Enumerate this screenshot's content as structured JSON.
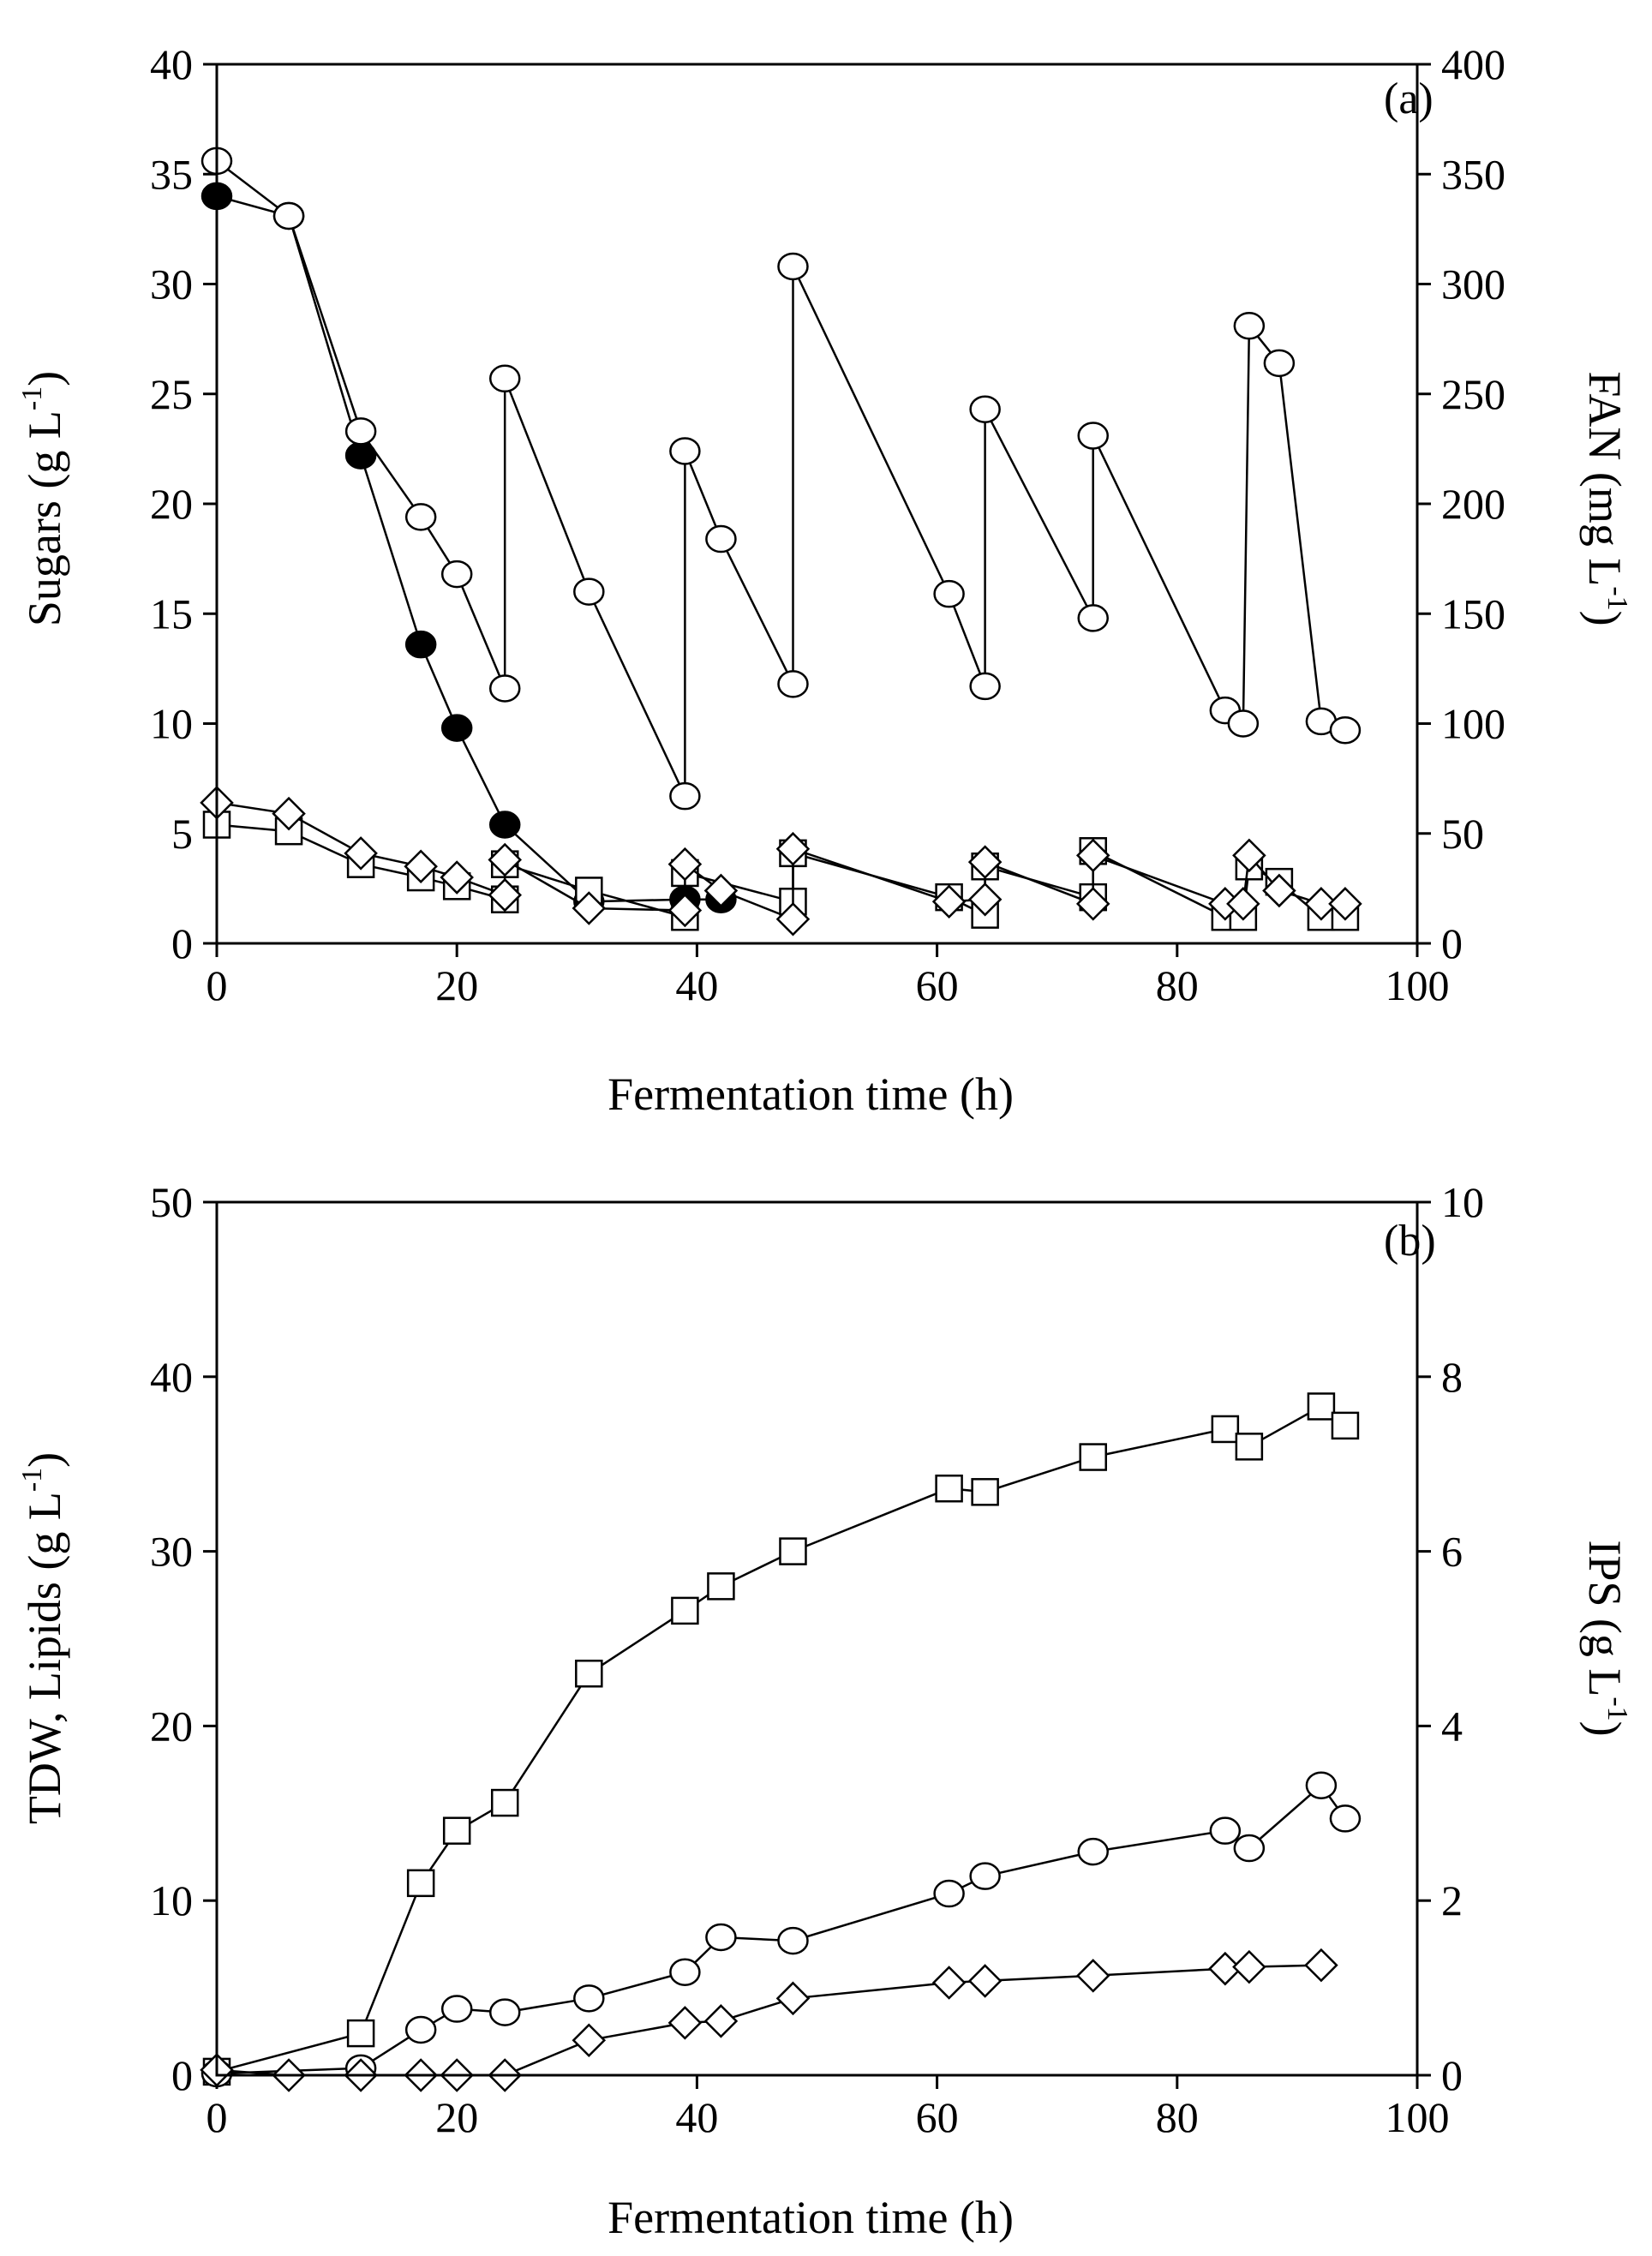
{
  "chart_data": [
    {
      "type": "line",
      "panel_label": "(a)",
      "xlabel": "Fermentation time (h)",
      "xlim": [
        0,
        100
      ],
      "xticks": [
        0,
        20,
        40,
        60,
        80,
        100
      ],
      "y_left": {
        "label": "Sugars (g L-1)",
        "label_main": "Sugars (g L",
        "label_sup": "-1",
        "label_end": ")",
        "lim": [
          0,
          40
        ],
        "ticks": [
          0,
          5,
          10,
          15,
          20,
          25,
          30,
          35,
          40
        ]
      },
      "y_right": {
        "label": "FAN (mg L-1)",
        "label_main": "FAN (mg L",
        "label_sup": "-1",
        "label_end": ")",
        "lim": [
          0,
          400
        ],
        "ticks": [
          0,
          50,
          100,
          150,
          200,
          250,
          300,
          350,
          400
        ]
      },
      "series": [
        {
          "name": "Sugar (filled circles)",
          "marker": "circle",
          "fill": "#000000",
          "axis": "left",
          "x": [
            0,
            6,
            12,
            17,
            20,
            24,
            31,
            39,
            42
          ],
          "y": [
            34.0,
            33.1,
            22.2,
            13.6,
            9.8,
            5.4,
            1.9,
            2.0,
            2.0
          ]
        },
        {
          "name": "FAN (open circles)",
          "marker": "circle",
          "fill": "#ffffff",
          "axis": "right",
          "x": [
            0,
            6,
            12,
            17,
            20,
            24,
            24,
            31,
            39,
            39,
            42,
            48,
            48,
            61,
            64,
            64,
            73,
            73,
            84,
            85.5,
            86,
            88.5,
            92,
            94
          ],
          "y": [
            356,
            331,
            233,
            194,
            168,
            116,
            257,
            160,
            67,
            224,
            184,
            118,
            308,
            159,
            117,
            243,
            148,
            231,
            106,
            100,
            281,
            264,
            101,
            97
          ]
        },
        {
          "name": "Sugar (open squares)",
          "marker": "square",
          "fill": "#ffffff",
          "axis": "left",
          "x": [
            0,
            6,
            12,
            17,
            20,
            24,
            24,
            31,
            39,
            39,
            48,
            48,
            61,
            64,
            64,
            73,
            73,
            84,
            85.5,
            86,
            88.5,
            92,
            94
          ],
          "y": [
            5.4,
            5.1,
            3.6,
            3.0,
            2.6,
            2.0,
            3.6,
            2.4,
            1.2,
            3.2,
            1.9,
            4.1,
            2.1,
            1.3,
            3.5,
            2.1,
            4.2,
            1.2,
            1.2,
            3.5,
            2.8,
            1.2,
            1.2
          ]
        },
        {
          "name": "Sugar (open diamonds)",
          "marker": "diamond",
          "fill": "#ffffff",
          "axis": "left",
          "x": [
            0,
            6,
            12,
            17,
            20,
            24,
            24,
            31,
            39,
            39,
            42,
            48,
            48,
            61,
            64,
            64,
            73,
            73,
            84,
            85.5,
            86,
            88.5,
            92,
            94
          ],
          "y": [
            6.4,
            5.9,
            4.1,
            3.5,
            3.0,
            2.2,
            3.8,
            1.6,
            1.5,
            3.6,
            2.4,
            1.1,
            4.3,
            1.9,
            2.0,
            3.7,
            1.8,
            4.0,
            1.8,
            1.8,
            4.0,
            2.4,
            1.8,
            1.8
          ]
        }
      ]
    },
    {
      "type": "line",
      "panel_label": "(b)",
      "xlabel": "Fermentation time (h)",
      "xlim": [
        0,
        100
      ],
      "xticks": [
        0,
        20,
        40,
        60,
        80,
        100
      ],
      "y_left": {
        "label": "TDW, Lipids (g L-1)",
        "label_main": "TDW, Lipids (g L",
        "label_sup": "-1",
        "label_end": ")",
        "lim": [
          0,
          50
        ],
        "ticks": [
          0,
          10,
          20,
          30,
          40,
          50
        ]
      },
      "y_right": {
        "label": "IPS (g L-1)",
        "label_main": "IPS (g L",
        "label_sup": "-1",
        "label_end": ")",
        "lim": [
          0,
          10
        ],
        "ticks": [
          0,
          2,
          4,
          6,
          8,
          10
        ]
      },
      "series": [
        {
          "name": "TDW (open squares)",
          "marker": "square",
          "fill": "#ffffff",
          "axis": "left",
          "x": [
            0,
            12,
            17,
            20,
            24,
            31,
            39,
            42,
            48,
            61,
            64,
            73,
            84,
            86,
            92,
            94
          ],
          "y": [
            0.2,
            2.4,
            11.0,
            14.0,
            15.6,
            23.0,
            26.6,
            28.0,
            30.0,
            33.6,
            33.4,
            35.4,
            37.0,
            36.0,
            38.3,
            37.2
          ]
        },
        {
          "name": "Lipids (open circles)",
          "marker": "circle",
          "fill": "#ffffff",
          "axis": "left",
          "x": [
            0,
            12,
            17,
            20,
            24,
            31,
            39,
            42,
            48,
            61,
            64,
            73,
            84,
            86,
            92,
            94
          ],
          "y": [
            0.1,
            0.4,
            2.6,
            3.8,
            3.6,
            4.4,
            5.9,
            7.9,
            7.7,
            10.4,
            11.4,
            12.8,
            14.0,
            13.0,
            16.6,
            14.7
          ]
        },
        {
          "name": "IPS (open diamonds)",
          "marker": "diamond",
          "fill": "#ffffff",
          "axis": "right",
          "x": [
            0,
            6,
            12,
            17,
            20,
            24,
            31,
            39,
            42,
            48,
            61,
            64,
            73,
            84,
            86,
            92
          ],
          "y": [
            0.06,
            0.0,
            0.0,
            0.0,
            0.0,
            0.0,
            0.4,
            0.6,
            0.62,
            0.88,
            1.06,
            1.08,
            1.14,
            1.22,
            1.24,
            1.26
          ]
        }
      ]
    }
  ]
}
